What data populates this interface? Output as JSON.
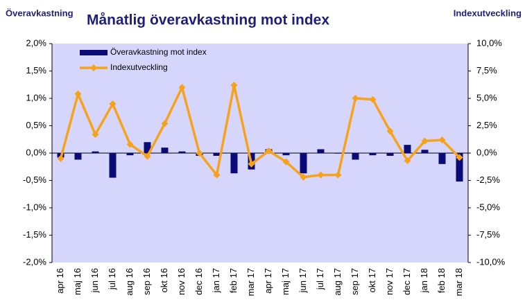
{
  "chart_data": {
    "type": "bar_line",
    "title": "Månatlig överavkastning mot index",
    "y_label": "Överavkastning",
    "y2_label": "Indexutveckling",
    "categories": [
      "apr 16",
      "maj 16",
      "jun 16",
      "jul 16",
      "aug 16",
      "sep 16",
      "okt 16",
      "nov 16",
      "dec 16",
      "jan 17",
      "feb 17",
      "mar 17",
      "apr 17",
      "maj 17",
      "jun 17",
      "jul 17",
      "aug 17",
      "sep 17",
      "okt 17",
      "nov 17",
      "dec 17",
      "jan 18",
      "feb 18",
      "mar 18"
    ],
    "series": [
      {
        "name": "Överavkastning mot index",
        "type": "bar",
        "color": "#0b0b78",
        "values": [
          -0.08,
          -0.12,
          0.03,
          -0.45,
          -0.04,
          0.2,
          0.1,
          0.03,
          -0.05,
          -0.05,
          -0.37,
          -0.3,
          0.07,
          -0.04,
          -0.37,
          0.07,
          -0.01,
          -0.12,
          -0.04,
          -0.05,
          0.15,
          0.06,
          -0.2,
          -0.52
        ]
      },
      {
        "name": "Indexutveckling",
        "type": "line",
        "axis": "y2",
        "color": "#f7a21b",
        "values": [
          -0.5,
          5.4,
          1.7,
          4.5,
          0.8,
          -0.3,
          2.7,
          6.0,
          0,
          -2.0,
          6.2,
          -1.0,
          0.2,
          -0.8,
          -2.2,
          -2.0,
          -2.0,
          5.0,
          4.9,
          2.0,
          -0.7,
          1.1,
          1.2,
          -0.4
        ]
      }
    ],
    "ylim": [
      -2,
      2
    ],
    "yticks": [
      {
        "value": -2,
        "label": "-2,0%"
      },
      {
        "value": -1.5,
        "label": "-1,5%"
      },
      {
        "value": -1,
        "label": "-1,0%"
      },
      {
        "value": -0.5,
        "label": "-0,5%"
      },
      {
        "value": 0,
        "label": "0,0%"
      },
      {
        "value": 0.5,
        "label": "0,5%"
      },
      {
        "value": 1,
        "label": "1,0%"
      },
      {
        "value": 1.5,
        "label": "1,5%"
      },
      {
        "value": 2,
        "label": "2,0%"
      }
    ],
    "y2lim": [
      -10,
      10
    ],
    "y2ticks": [
      {
        "value": -10,
        "label": "-10,0%"
      },
      {
        "value": -7.5,
        "label": "-7,5%"
      },
      {
        "value": -5,
        "label": "-5,0%"
      },
      {
        "value": -2.5,
        "label": "-2,5%"
      },
      {
        "value": 0,
        "label": "0,0%"
      },
      {
        "value": 2.5,
        "label": "2,5%"
      },
      {
        "value": 5,
        "label": "5,0%"
      },
      {
        "value": 7.5,
        "label": "7,5%"
      },
      {
        "value": 10,
        "label": "10,0%"
      }
    ],
    "legend": "upper left"
  }
}
